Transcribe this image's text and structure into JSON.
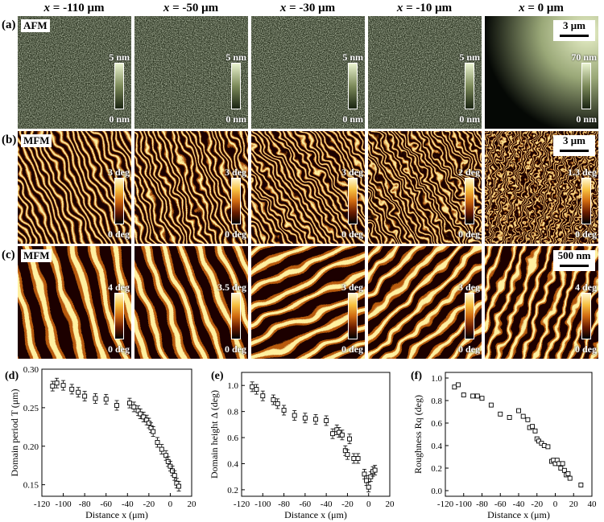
{
  "columns": [
    "x = -110 μm",
    "x = -50 μm",
    "x = -30 μm",
    "x = -10 μm",
    "x = 0 μm"
  ],
  "column_parts": [
    {
      "var": "x",
      "rest": " = -110 μm"
    },
    {
      "var": "x",
      "rest": " = -50 μm"
    },
    {
      "var": "x",
      "rest": " = -30 μm"
    },
    {
      "var": "x",
      "rest": " = -10 μm"
    },
    {
      "var": "x",
      "rest": " = 0 μm"
    }
  ],
  "rows": [
    {
      "label": "(a)",
      "tag": "AFM",
      "scale": "3 μm",
      "top": [
        "5 nm",
        "5 nm",
        "5 nm",
        "5 nm",
        "70 nm"
      ],
      "bottom": [
        "0 nm",
        "0 nm",
        "0 nm",
        "0 nm",
        "0 nm"
      ]
    },
    {
      "label": "(b)",
      "tag": "MFM",
      "scale": "3 μm",
      "top": [
        "3 deg",
        "3 deg",
        "3 deg",
        "2 deg",
        "1.3 deg"
      ],
      "bottom": [
        "0 deg",
        "0 deg",
        "0 deg",
        "0 deg",
        "0 deg"
      ]
    },
    {
      "label": "(c)",
      "tag": "MFM",
      "scale": "500 nm",
      "top": [
        "4 deg",
        "3.5 deg",
        "3 deg",
        "3 deg",
        "4 deg"
      ],
      "bottom": [
        "0 deg",
        "0 deg",
        "0 deg",
        "0 deg",
        "0 deg"
      ]
    }
  ],
  "colors": {
    "afm_dark": "#2a3320",
    "afm_light": "#d8e8b8",
    "mfm_dark": "#1a0500",
    "mfm_mid": "#b85a10",
    "mfm_light": "#fff0a0"
  },
  "chart_data": [
    {
      "type": "scatter",
      "panel": "(d)",
      "title": "",
      "xlabel": "Distance x (μm)",
      "ylabel": "Domain period T (μm)",
      "xlim": [
        -120,
        20
      ],
      "ylim": [
        0.135,
        0.3
      ],
      "xticks": [
        "-120",
        "-100",
        "-80",
        "-60",
        "-40",
        "-20",
        "0",
        "20"
      ],
      "yticks": [
        "0.15",
        "0.20",
        "0.25",
        "0.30"
      ],
      "ytick_values": [
        0.15,
        0.2,
        0.25,
        0.3
      ],
      "error_bars": true,
      "x": [
        -110,
        -106,
        -100,
        -92,
        -86,
        -80,
        -70,
        -60,
        -50,
        -38,
        -34,
        -30,
        -28,
        -25,
        -22,
        -20,
        -18,
        -16,
        -12,
        -8,
        -4,
        -2,
        0,
        2,
        4,
        6,
        8
      ],
      "y": [
        0.278,
        0.282,
        0.279,
        0.274,
        0.27,
        0.265,
        0.262,
        0.261,
        0.253,
        0.256,
        0.251,
        0.246,
        0.242,
        0.238,
        0.234,
        0.23,
        0.224,
        0.219,
        0.205,
        0.196,
        0.188,
        0.18,
        0.174,
        0.168,
        0.162,
        0.152,
        0.148
      ]
    },
    {
      "type": "scatter",
      "panel": "(e)",
      "title": "",
      "xlabel": "Distance x (μm)",
      "ylabel": "Domain height Δ (deg)",
      "xlim": [
        -120,
        20
      ],
      "ylim": [
        0.15,
        1.1
      ],
      "xticks": [
        "-120",
        "-100",
        "-80",
        "-60",
        "-40",
        "-20",
        "0",
        "20"
      ],
      "yticks": [
        "0.2",
        "0.4",
        "0.6",
        "0.8",
        "1.0"
      ],
      "ytick_values": [
        0.2,
        0.4,
        0.6,
        0.8,
        1.0
      ],
      "error_bars": true,
      "x": [
        -110,
        -106,
        -100,
        -90,
        -86,
        -80,
        -70,
        -60,
        -50,
        -40,
        -34,
        -30,
        -28,
        -25,
        -22,
        -20,
        -18,
        -14,
        -10,
        -4,
        -2,
        0,
        2,
        4,
        6
      ],
      "y": [
        0.99,
        0.97,
        0.92,
        0.89,
        0.86,
        0.81,
        0.77,
        0.75,
        0.74,
        0.73,
        0.63,
        0.66,
        0.64,
        0.62,
        0.5,
        0.47,
        0.59,
        0.44,
        0.44,
        0.32,
        0.27,
        0.22,
        0.3,
        0.34,
        0.35
      ]
    },
    {
      "type": "scatter",
      "panel": "(f)",
      "title": "",
      "xlabel": "Distance x (μm)",
      "ylabel": "Roughness Rq (deg)",
      "xlim": [
        -120,
        40
      ],
      "ylim": [
        -0.05,
        1.05
      ],
      "xticks": [
        "-120",
        "-100",
        "-80",
        "-60",
        "-40",
        "-20",
        "0",
        "20",
        "40"
      ],
      "yticks": [
        "0.0",
        "0.2",
        "0.4",
        "0.6",
        "0.8",
        "1.0"
      ],
      "ytick_values": [
        0.0,
        0.2,
        0.4,
        0.6,
        0.8,
        1.0
      ],
      "error_bars": false,
      "x": [
        -110,
        -106,
        -100,
        -90,
        -85,
        -80,
        -70,
        -60,
        -50,
        -40,
        -35,
        -30,
        -28,
        -25,
        -22,
        -20,
        -18,
        -15,
        -12,
        -8,
        -4,
        -2,
        0,
        2,
        4,
        6,
        8,
        10,
        12,
        14,
        16,
        28
      ],
      "y": [
        0.92,
        0.94,
        0.85,
        0.84,
        0.84,
        0.82,
        0.76,
        0.68,
        0.65,
        0.71,
        0.66,
        0.63,
        0.56,
        0.57,
        0.53,
        0.46,
        0.44,
        0.42,
        0.4,
        0.39,
        0.26,
        0.27,
        0.24,
        0.27,
        0.24,
        0.2,
        0.24,
        0.18,
        0.14,
        0.15,
        0.11,
        0.05
      ]
    }
  ]
}
